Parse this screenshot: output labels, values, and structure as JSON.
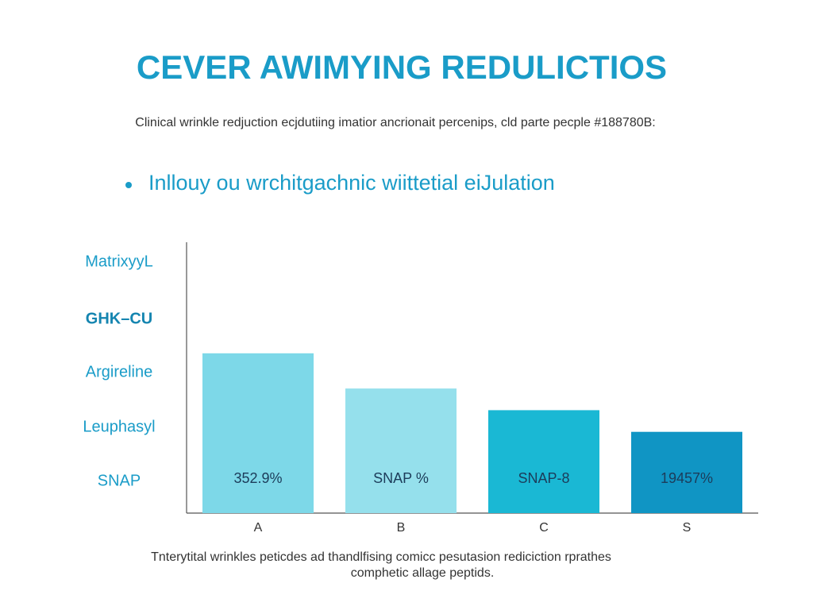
{
  "chart_data": {
    "type": "bar",
    "title": "CEVER AWIMYING REDULICTIOS",
    "subtitle": "Clinical wrinkle redjuction ecjdutiing imatior ancrionait percenips, cld parte pecple #188780B:",
    "bullet": "Inllouy ou wrchitgachnic wiittetial eiJulation",
    "ylabels": [
      "MatrixyyL",
      "GHK–CU",
      "Argireline",
      "Leuphasyl",
      "SNAP"
    ],
    "categories": [
      "A",
      "B",
      "C",
      "S"
    ],
    "values": [
      59,
      46,
      38,
      30
    ],
    "colors": [
      "#7dd8e8",
      "#95e0ec",
      "#1ab8d4",
      "#1095c4"
    ],
    "annotations": [
      "352.9%",
      "SNAP %",
      "SNAP-8",
      "19457%"
    ],
    "ylim": [
      0,
      100
    ],
    "footnote": [
      "Tnterytital wrinkles peticdes ad thandlfising comicc pesutasion rediciction rprathes",
      "comphetic allage peptids."
    ]
  }
}
